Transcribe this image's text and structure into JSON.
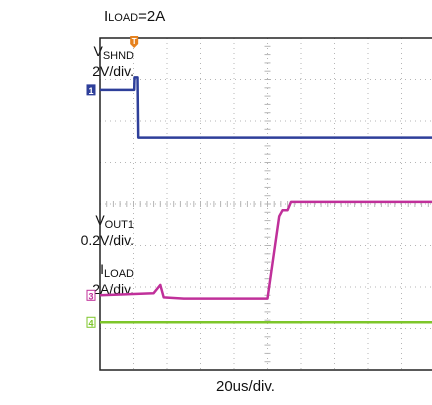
{
  "chart_data": {
    "type": "line",
    "title_prefix": "I",
    "title_sub": "LOAD",
    "title_suffix": "=2A",
    "xlabel": "20us/div.",
    "x_divisions": 10,
    "y_divisions": 8,
    "time_per_div_us": 20,
    "series": [
      {
        "name_main": "V",
        "name_sub": "SHND",
        "scale": "2V/div.",
        "channel_marker": "1",
        "color": "#2e3f9a",
        "x_div": [
          0,
          1.02,
          1.03,
          1.12,
          1.14,
          10
        ],
        "y_div": [
          6.75,
          6.75,
          7.05,
          7.05,
          5.6,
          5.6
        ]
      },
      {
        "name_main": "V",
        "name_sub": "OUT1",
        "scale": "0.2V/div.",
        "channel_marker": "3",
        "color": "#c0309a",
        "x_div": [
          0,
          1.6,
          1.8,
          1.9,
          2.5,
          5.0,
          5.1,
          5.35,
          5.45,
          5.6,
          5.7,
          10
        ],
        "y_div": [
          1.8,
          1.85,
          2.05,
          1.75,
          1.72,
          1.72,
          2.3,
          3.7,
          3.85,
          3.85,
          4.05,
          4.05
        ]
      },
      {
        "name_main": "I",
        "name_sub": "LOAD",
        "scale": "2A/div.",
        "channel_marker": "4",
        "color": "#7dc62a",
        "x_div": [
          0,
          10
        ],
        "y_div": [
          1.15,
          1.15
        ]
      }
    ],
    "trigger_marker": "T",
    "grid": true
  }
}
